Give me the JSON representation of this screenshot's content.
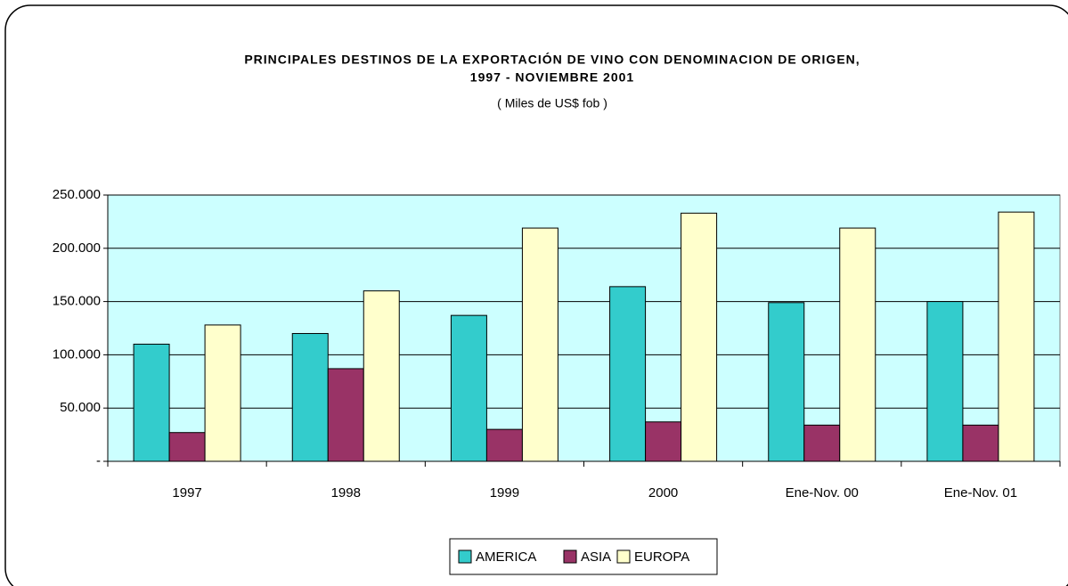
{
  "chart_data": {
    "type": "bar",
    "title": [
      "PRINCIPALES DESTINOS DE LA EXPORTACIÓN DE VINO CON DENOMINACION DE ORIGEN,",
      "1997 - NOVIEMBRE 2001"
    ],
    "subtitle": "( Miles de US$ fob )",
    "categories": [
      "1997",
      "1998",
      "1999",
      "2000",
      "Ene-Nov. 00",
      "Ene-Nov. 01"
    ],
    "series": [
      {
        "name": "AMERICA",
        "color": "#33cccc",
        "values": [
          110000,
          120000,
          137000,
          164000,
          149000,
          150000
        ]
      },
      {
        "name": "ASIA",
        "color": "#993366",
        "values": [
          27000,
          87000,
          30000,
          37000,
          34000,
          34000
        ]
      },
      {
        "name": "EUROPA",
        "color": "#ffffcc",
        "values": [
          128000,
          160000,
          219000,
          233000,
          219000,
          234000
        ]
      }
    ],
    "ylim": [
      0,
      250000
    ],
    "yticks": [
      {
        "value": 0,
        "label": "-"
      },
      {
        "value": 50000,
        "label": "50.000"
      },
      {
        "value": 100000,
        "label": "100.000"
      },
      {
        "value": 150000,
        "label": "150.000"
      },
      {
        "value": 200000,
        "label": "200.000"
      },
      {
        "value": 250000,
        "label": "250.000"
      }
    ],
    "grid": true,
    "plot_background": "#ccffff",
    "legend": "bottom"
  }
}
